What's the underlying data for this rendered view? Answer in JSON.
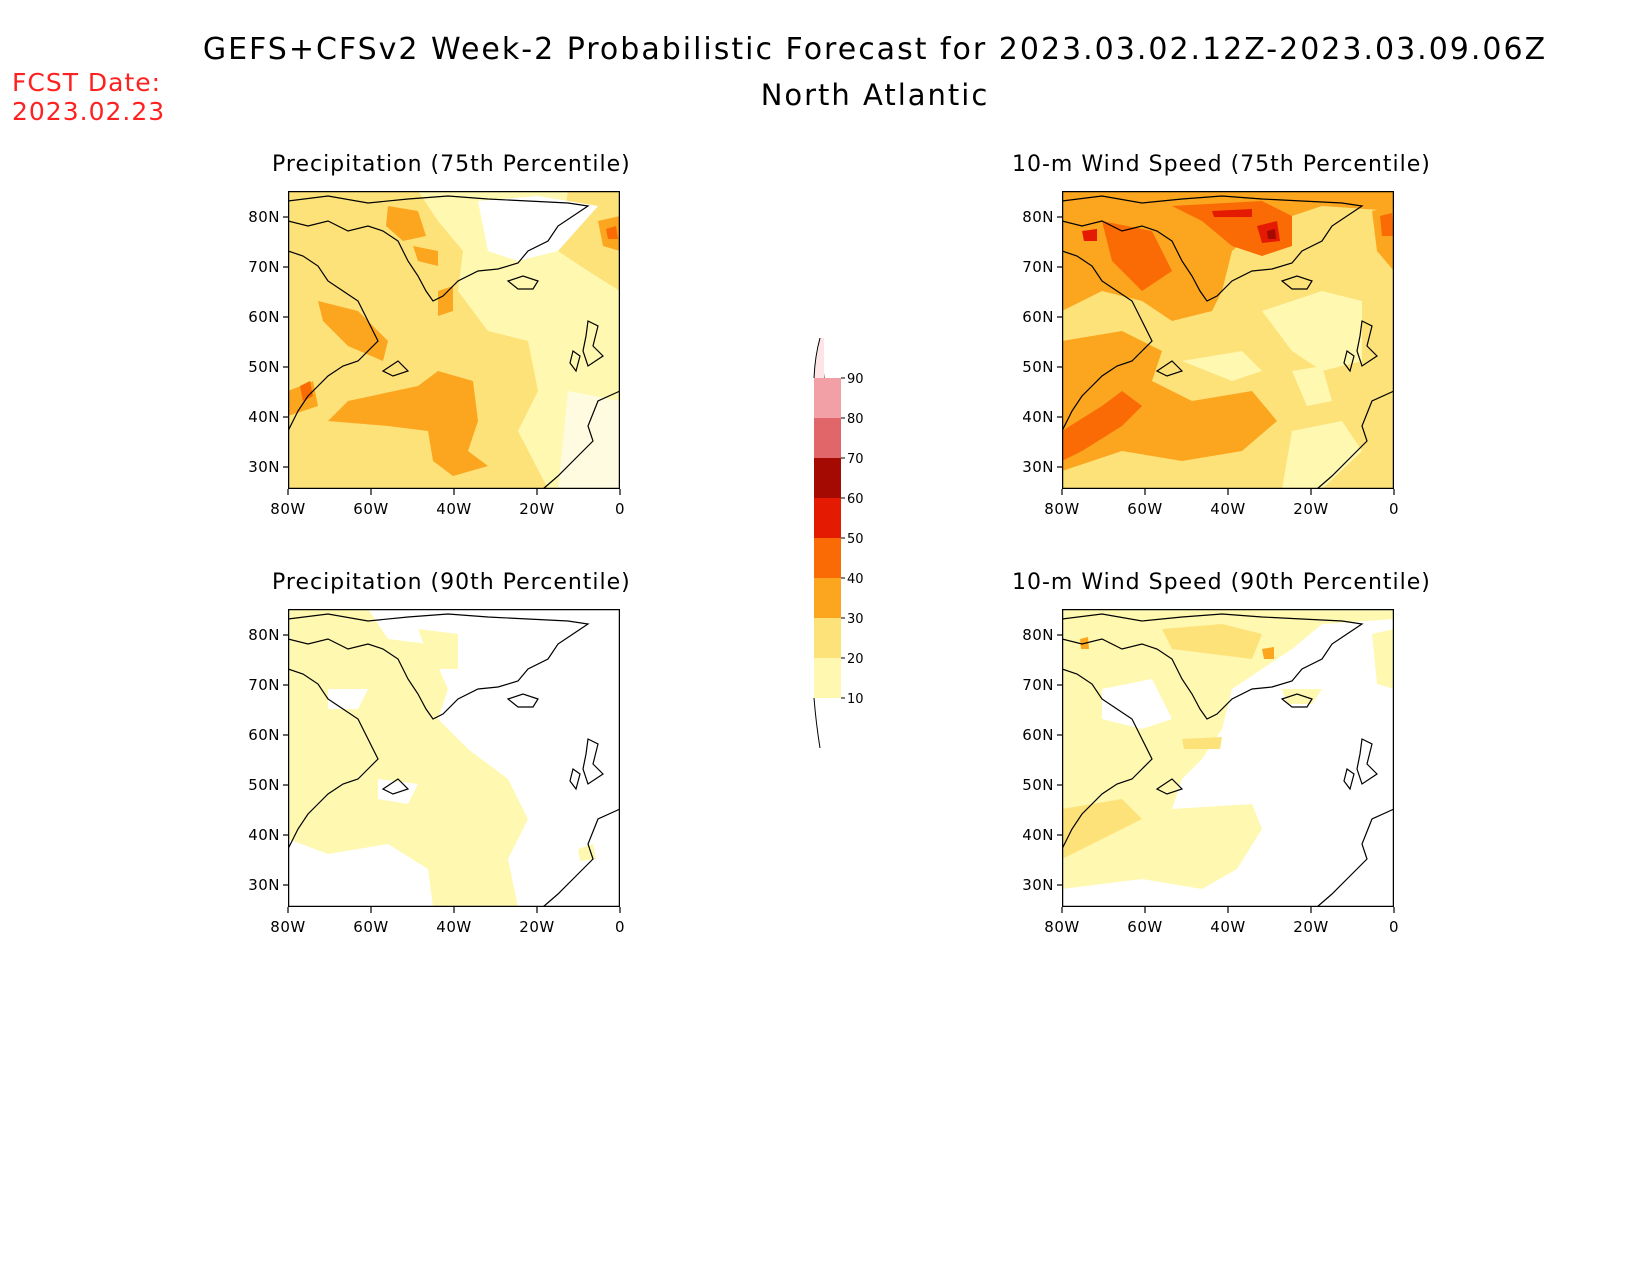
{
  "title": "GEFS+CFSv2 Week-2 Probabilistic Forecast for 2023.03.02.12Z-2023.03.09.06Z",
  "subtitle": "North Atlantic",
  "fcst_date_label": "FCST Date:",
  "fcst_date_value": "2023.02.23",
  "colors": {
    "c10": "#fff8b0",
    "c20": "#fde27a",
    "c30": "#fba61e",
    "c40": "#fa6b05",
    "c50": "#e41a02",
    "c60": "#a50a02",
    "c70": "#e0666a",
    "c80": "#f2a0a5",
    "c90": "#fde4e6"
  },
  "colorbar": {
    "levels": [
      "10",
      "20",
      "30",
      "40",
      "50",
      "60",
      "70",
      "80",
      "90"
    ]
  },
  "panels": [
    {
      "id": "precip75",
      "title": "Precipitation (75th Percentile)"
    },
    {
      "id": "wind75",
      "title": "10-m Wind Speed (75th Percentile)"
    },
    {
      "id": "precip90",
      "title": "Precipitation (90th Percentile)"
    },
    {
      "id": "wind90",
      "title": "10-m Wind Speed (90th Percentile)"
    }
  ],
  "axes": {
    "lat_labels": [
      "80N",
      "70N",
      "60N",
      "50N",
      "40N",
      "30N"
    ],
    "lon_labels": [
      "80W",
      "60W",
      "40W",
      "20W",
      "0"
    ]
  }
}
